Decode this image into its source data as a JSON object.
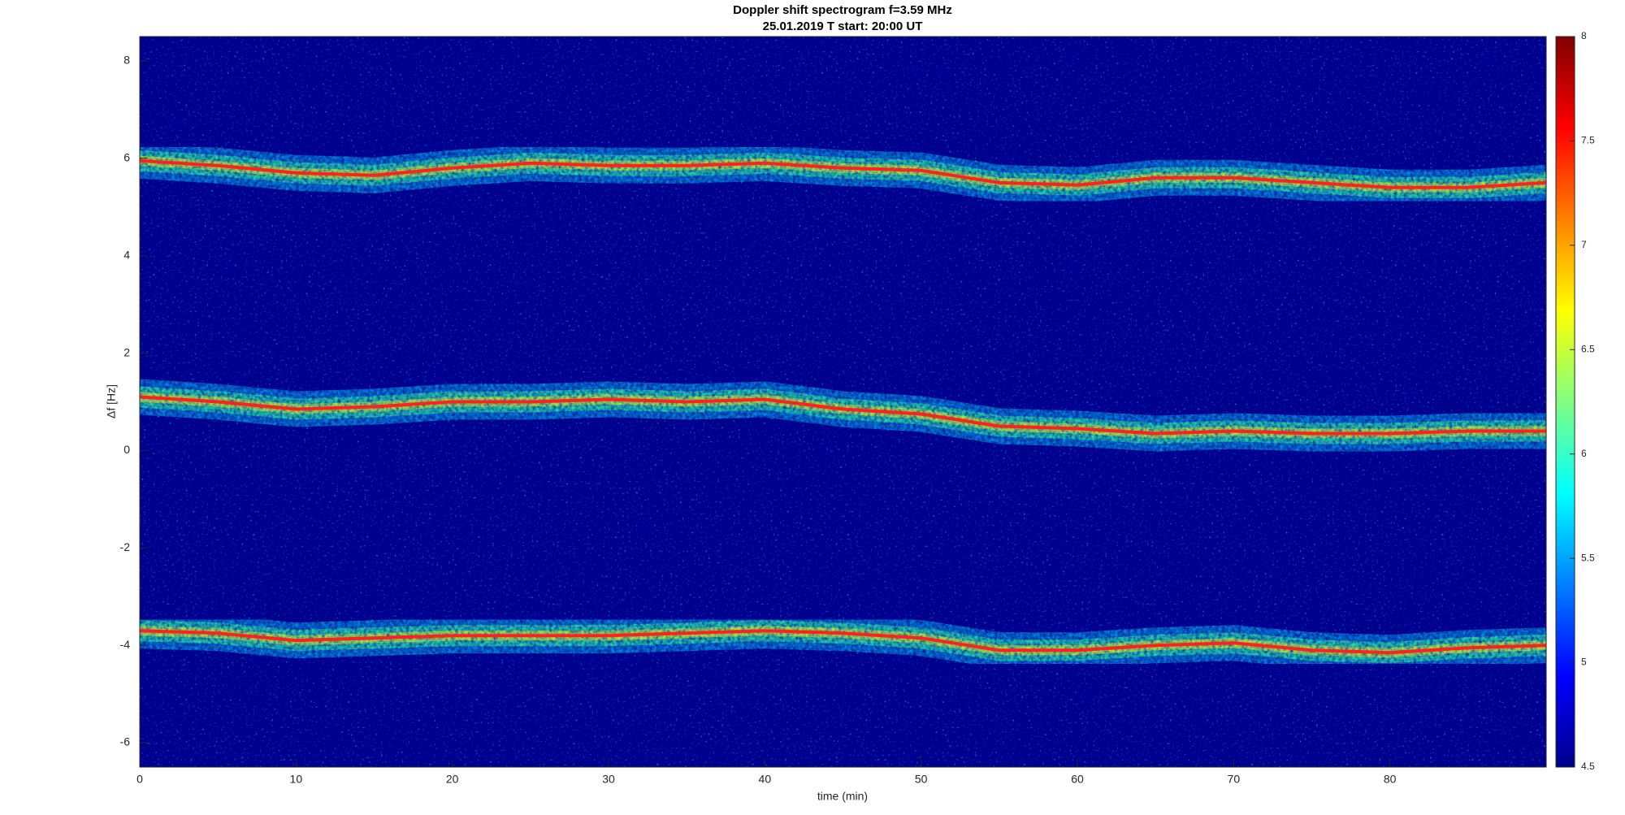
{
  "chart_data": {
    "type": "spectrogram",
    "title": "Doppler shift spectrogram f=3.59 MHz",
    "subtitle": "25.01.2019    T start: 20:00 UT",
    "x_label": "time (min)",
    "y_label": "Δf [Hz]",
    "x": [
      0,
      5,
      10,
      15,
      20,
      25,
      30,
      35,
      40,
      45,
      50,
      55,
      60,
      65,
      70,
      75,
      80,
      85,
      90
    ],
    "series": [
      {
        "values": [
          5.95,
          5.85,
          5.7,
          5.65,
          5.8,
          5.9,
          5.85,
          5.85,
          5.9,
          5.8,
          5.75,
          5.5,
          5.45,
          5.6,
          5.6,
          5.5,
          5.4,
          5.4,
          5.5
        ]
      },
      {
        "values": [
          1.1,
          1.0,
          0.85,
          0.9,
          1.0,
          1.0,
          1.05,
          1.0,
          1.05,
          0.85,
          0.75,
          0.5,
          0.45,
          0.35,
          0.4,
          0.35,
          0.35,
          0.4,
          0.4
        ]
      },
      {
        "values": [
          -3.7,
          -3.75,
          -3.9,
          -3.85,
          -3.8,
          -3.8,
          -3.8,
          -3.75,
          -3.7,
          -3.75,
          -3.85,
          -4.1,
          -4.1,
          -4.0,
          -3.95,
          -4.1,
          -4.15,
          -4.05,
          -4.0
        ]
      }
    ],
    "xlim": [
      0,
      90
    ],
    "xticks": [
      0,
      10,
      20,
      30,
      40,
      50,
      60,
      70,
      80
    ],
    "ylim": [
      -6.5,
      8.5
    ],
    "yticks": [
      -6,
      -4,
      -2,
      0,
      2,
      4,
      6,
      8
    ],
    "colormap": "jet",
    "clim": [
      4.5,
      8
    ],
    "cticks": [
      4.5,
      5,
      5.5,
      6,
      6.5,
      7,
      7.5,
      8
    ]
  }
}
